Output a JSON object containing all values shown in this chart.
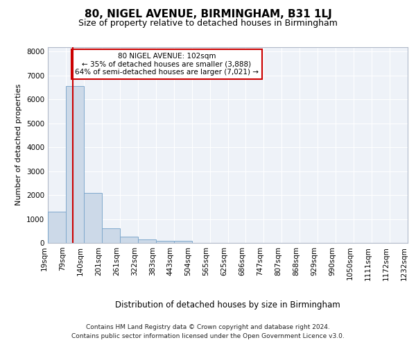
{
  "title1": "80, NIGEL AVENUE, BIRMINGHAM, B31 1LJ",
  "title2": "Size of property relative to detached houses in Birmingham",
  "xlabel": "Distribution of detached houses by size in Birmingham",
  "ylabel": "Number of detached properties",
  "footer1": "Contains HM Land Registry data © Crown copyright and database right 2024.",
  "footer2": "Contains public sector information licensed under the Open Government Licence v3.0.",
  "annotation_line1": "80 NIGEL AVENUE: 102sqm",
  "annotation_line2": "← 35% of detached houses are smaller (3,888)",
  "annotation_line3": "64% of semi-detached houses are larger (7,021) →",
  "bar_color": "#ccd9e8",
  "bar_edge_color": "#7fa8cc",
  "bar_heights": [
    1300,
    6550,
    2090,
    620,
    260,
    140,
    95,
    75,
    0,
    0,
    0,
    0,
    0,
    0,
    0,
    0,
    0,
    0,
    0,
    0
  ],
  "categories": [
    "19sqm",
    "79sqm",
    "140sqm",
    "201sqm",
    "261sqm",
    "322sqm",
    "383sqm",
    "443sqm",
    "504sqm",
    "565sqm",
    "625sqm",
    "686sqm",
    "747sqm",
    "807sqm",
    "868sqm",
    "929sqm",
    "990sqm",
    "1050sqm",
    "1111sqm",
    "1172sqm",
    "1232sqm"
  ],
  "ylim": [
    0,
    8200
  ],
  "yticks": [
    0,
    1000,
    2000,
    3000,
    4000,
    5000,
    6000,
    7000,
    8000
  ],
  "red_line_color": "#cc0000",
  "annotation_box_edge": "#cc0000",
  "background_color": "#eef2f8",
  "grid_color": "#ffffff",
  "title1_fontsize": 11,
  "title2_fontsize": 9,
  "xlabel_fontsize": 8.5,
  "ylabel_fontsize": 8,
  "annotation_fontsize": 7.5,
  "footer_fontsize": 6.5,
  "tick_fontsize": 7.5
}
